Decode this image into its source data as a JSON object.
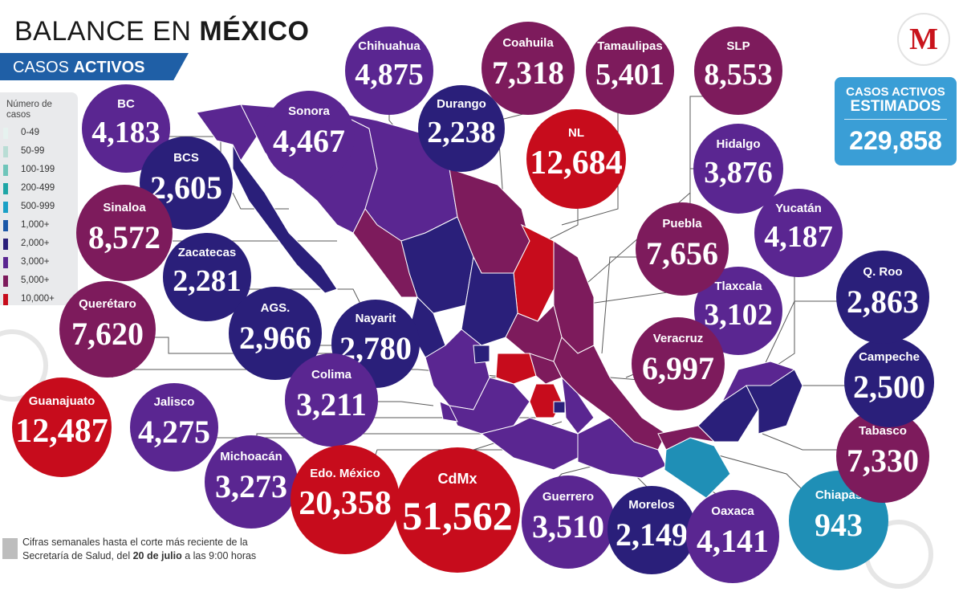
{
  "header": {
    "title_light": "BALANCE EN",
    "title_bold": "MÉXICO",
    "subtitle_light": "CASOS",
    "subtitle_bold": "ACTIVOS"
  },
  "logo": {
    "letter": "M"
  },
  "legend": {
    "title": "Número de casos",
    "items": [
      {
        "label": "0-49",
        "color": "#e6f2ef"
      },
      {
        "label": "50-99",
        "color": "#b9ddd5"
      },
      {
        "label": "100-199",
        "color": "#6fc5ba"
      },
      {
        "label": "200-499",
        "color": "#1fa6a6"
      },
      {
        "label": "500-999",
        "color": "#1aa0c6"
      },
      {
        "label": "1,000+",
        "color": "#1b58a8"
      },
      {
        "label": "2,000+",
        "color": "#2a1f7a"
      },
      {
        "label": "3,000+",
        "color": "#5a2691"
      },
      {
        "label": "5,000+",
        "color": "#7d1b5c"
      },
      {
        "label": "10,000+",
        "color": "#c70c1c"
      }
    ]
  },
  "estimated": {
    "line1": "CASOS ACTIVOS",
    "line2": "ESTIMADOS",
    "value": "229,858",
    "color": "#3a9ed6"
  },
  "states": [
    {
      "name": "BC",
      "value": "4,183",
      "color": "#5a2691"
    },
    {
      "name": "BCS",
      "value": "2,605",
      "color": "#2a1f7a"
    },
    {
      "name": "Sinaloa",
      "value": "8,572",
      "color": "#7d1b5c"
    },
    {
      "name": "Zacatecas",
      "value": "2,281",
      "color": "#2a1f7a"
    },
    {
      "name": "Querétaro",
      "value": "7,620",
      "color": "#7d1b5c"
    },
    {
      "name": "AGS.",
      "value": "2,966",
      "color": "#2a1f7a"
    },
    {
      "name": "Nayarit",
      "value": "2,780",
      "color": "#2a1f7a"
    },
    {
      "name": "Colima",
      "value": "3,211",
      "color": "#5a2691"
    },
    {
      "name": "Guanajuato",
      "value": "12,487",
      "color": "#c70c1c"
    },
    {
      "name": "Jalisco",
      "value": "4,275",
      "color": "#5a2691"
    },
    {
      "name": "Michoacán",
      "value": "3,273",
      "color": "#5a2691"
    },
    {
      "name": "Edo. México",
      "value": "20,358",
      "color": "#c70c1c"
    },
    {
      "name": "CdMx",
      "value": "51,562",
      "color": "#c70c1c"
    },
    {
      "name": "Guerrero",
      "value": "3,510",
      "color": "#5a2691"
    },
    {
      "name": "Morelos",
      "value": "2,149",
      "color": "#2a1f7a"
    },
    {
      "name": "Oaxaca",
      "value": "4,141",
      "color": "#5a2691"
    },
    {
      "name": "Chiapas",
      "value": "943",
      "color": "#1f8fb6"
    },
    {
      "name": "Tabasco",
      "value": "7,330",
      "color": "#7d1b5c"
    },
    {
      "name": "Campeche",
      "value": "2,500",
      "color": "#2a1f7a"
    },
    {
      "name": "Q. Roo",
      "value": "2,863",
      "color": "#2a1f7a"
    },
    {
      "name": "Yucatán",
      "value": "4,187",
      "color": "#5a2691"
    },
    {
      "name": "Tlaxcala",
      "value": "3,102",
      "color": "#5a2691"
    },
    {
      "name": "Veracruz",
      "value": "6,997",
      "color": "#7d1b5c"
    },
    {
      "name": "Puebla",
      "value": "7,656",
      "color": "#7d1b5c"
    },
    {
      "name": "Hidalgo",
      "value": "3,876",
      "color": "#5a2691"
    },
    {
      "name": "SLP",
      "value": "8,553",
      "color": "#7d1b5c"
    },
    {
      "name": "NL",
      "value": "12,684",
      "color": "#c70c1c"
    },
    {
      "name": "Tamaulipas",
      "value": "5,401",
      "color": "#7d1b5c"
    },
    {
      "name": "Coahuila",
      "value": "7,318",
      "color": "#7d1b5c"
    },
    {
      "name": "Durango",
      "value": "2,238",
      "color": "#2a1f7a"
    },
    {
      "name": "Chihuahua",
      "value": "4,875",
      "color": "#5a2691"
    },
    {
      "name": "Sonora",
      "value": "4,467",
      "color": "#5a2691"
    }
  ],
  "footer": {
    "text_a": "Cifras semanales hasta el corte más reciente de la Secretaría de Salud, del",
    "text_date": "20 de julio",
    "text_b": "a las 9:00 horas"
  }
}
